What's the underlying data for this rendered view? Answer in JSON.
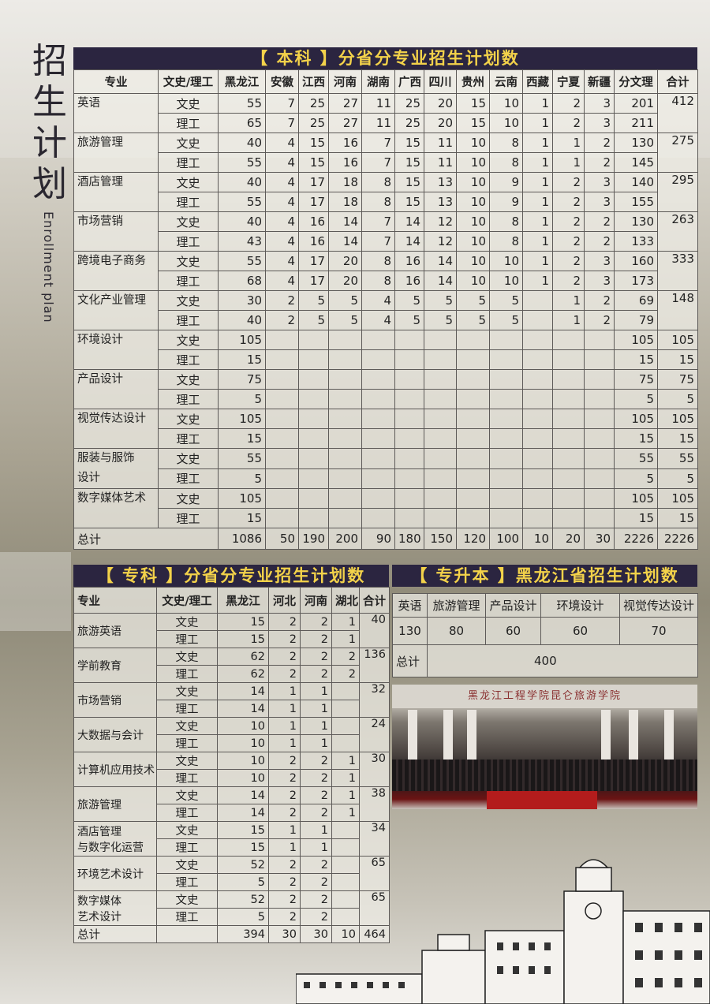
{
  "page": {
    "title_chars": [
      "招",
      "生",
      "计",
      "划"
    ],
    "subtitle": "Enrollment plan"
  },
  "benke": {
    "title": "【 本科 】分省分专业招生计划数",
    "headers": [
      "专业",
      "文史/理工",
      "黑龙江",
      "安徽",
      "江西",
      "河南",
      "湖南",
      "广西",
      "四川",
      "贵州",
      "云南",
      "西藏",
      "宁夏",
      "新疆",
      "分文理",
      "合计"
    ],
    "majors": [
      {
        "name": "英语",
        "total": "412",
        "rows": [
          [
            "文史",
            "55",
            "7",
            "25",
            "27",
            "11",
            "25",
            "20",
            "15",
            "10",
            "1",
            "2",
            "3",
            "201"
          ],
          [
            "理工",
            "65",
            "7",
            "25",
            "27",
            "11",
            "25",
            "20",
            "15",
            "10",
            "1",
            "2",
            "3",
            "211"
          ]
        ]
      },
      {
        "name": "旅游管理",
        "total": "275",
        "rows": [
          [
            "文史",
            "40",
            "4",
            "15",
            "16",
            "7",
            "15",
            "11",
            "10",
            "8",
            "1",
            "1",
            "2",
            "130"
          ],
          [
            "理工",
            "55",
            "4",
            "15",
            "16",
            "7",
            "15",
            "11",
            "10",
            "8",
            "1",
            "1",
            "2",
            "145"
          ]
        ]
      },
      {
        "name": "酒店管理",
        "total": "295",
        "rows": [
          [
            "文史",
            "40",
            "4",
            "17",
            "18",
            "8",
            "15",
            "13",
            "10",
            "9",
            "1",
            "2",
            "3",
            "140"
          ],
          [
            "理工",
            "55",
            "4",
            "17",
            "18",
            "8",
            "15",
            "13",
            "10",
            "9",
            "1",
            "2",
            "3",
            "155"
          ]
        ]
      },
      {
        "name": "市场营销",
        "total": "263",
        "rows": [
          [
            "文史",
            "40",
            "4",
            "16",
            "14",
            "7",
            "14",
            "12",
            "10",
            "8",
            "1",
            "2",
            "2",
            "130"
          ],
          [
            "理工",
            "43",
            "4",
            "16",
            "14",
            "7",
            "14",
            "12",
            "10",
            "8",
            "1",
            "2",
            "2",
            "133"
          ]
        ]
      },
      {
        "name": "跨境电子商务",
        "total": "333",
        "rows": [
          [
            "文史",
            "55",
            "4",
            "17",
            "20",
            "8",
            "16",
            "14",
            "10",
            "10",
            "1",
            "2",
            "3",
            "160"
          ],
          [
            "理工",
            "68",
            "4",
            "17",
            "20",
            "8",
            "16",
            "14",
            "10",
            "10",
            "1",
            "2",
            "3",
            "173"
          ]
        ]
      },
      {
        "name": "文化产业管理",
        "total": "148",
        "rows": [
          [
            "文史",
            "30",
            "2",
            "5",
            "5",
            "4",
            "5",
            "5",
            "5",
            "5",
            "",
            "1",
            "2",
            "69"
          ],
          [
            "理工",
            "40",
            "2",
            "5",
            "5",
            "4",
            "5",
            "5",
            "5",
            "5",
            "",
            "1",
            "2",
            "79"
          ]
        ]
      },
      {
        "name": "环境设计",
        "totals": [
          "105",
          "15"
        ],
        "rows": [
          [
            "文史",
            "105",
            "",
            "",
            "",
            "",
            "",
            "",
            "",
            "",
            "",
            "",
            "",
            "105"
          ],
          [
            "理工",
            "15",
            "",
            "",
            "",
            "",
            "",
            "",
            "",
            "",
            "",
            "",
            "",
            "15"
          ]
        ]
      },
      {
        "name": "产品设计",
        "totals": [
          "75",
          "5"
        ],
        "rows": [
          [
            "文史",
            "75",
            "",
            "",
            "",
            "",
            "",
            "",
            "",
            "",
            "",
            "",
            "",
            "75"
          ],
          [
            "理工",
            "5",
            "",
            "",
            "",
            "",
            "",
            "",
            "",
            "",
            "",
            "",
            "",
            "5"
          ]
        ]
      },
      {
        "name": "视觉传达设计",
        "totals": [
          "105",
          "15"
        ],
        "rows": [
          [
            "文史",
            "105",
            "",
            "",
            "",
            "",
            "",
            "",
            "",
            "",
            "",
            "",
            "",
            "105"
          ],
          [
            "理工",
            "15",
            "",
            "",
            "",
            "",
            "",
            "",
            "",
            "",
            "",
            "",
            "",
            "15"
          ]
        ]
      },
      {
        "name": "服装与服饰设计",
        "name_lines": [
          "服装与服饰",
          "设计"
        ],
        "totals": [
          "55",
          "5"
        ],
        "rows": [
          [
            "文史",
            "55",
            "",
            "",
            "",
            "",
            "",
            "",
            "",
            "",
            "",
            "",
            "",
            "55"
          ],
          [
            "理工",
            "5",
            "",
            "",
            "",
            "",
            "",
            "",
            "",
            "",
            "",
            "",
            "",
            "5"
          ]
        ]
      },
      {
        "name": "数字媒体艺术",
        "totals": [
          "105",
          "15"
        ],
        "rows": [
          [
            "文史",
            "105",
            "",
            "",
            "",
            "",
            "",
            "",
            "",
            "",
            "",
            "",
            "",
            "105"
          ],
          [
            "理工",
            "15",
            "",
            "",
            "",
            "",
            "",
            "",
            "",
            "",
            "",
            "",
            "",
            "15"
          ]
        ]
      }
    ],
    "total_row": [
      "总计",
      "1086",
      "50",
      "190",
      "200",
      "90",
      "180",
      "150",
      "120",
      "100",
      "10",
      "20",
      "30",
      "2226",
      "2226"
    ]
  },
  "zhuanke": {
    "title": "【 专科 】分省分专业招生计划数",
    "headers": [
      "专业",
      "文史/理工",
      "黑龙江",
      "河北",
      "河南",
      "湖北",
      "合计"
    ],
    "majors": [
      {
        "name": "旅游英语",
        "total": "40",
        "rows": [
          [
            "文史",
            "15",
            "2",
            "2",
            "1"
          ],
          [
            "理工",
            "15",
            "2",
            "2",
            "1"
          ]
        ]
      },
      {
        "name": "学前教育",
        "total": "136",
        "rows": [
          [
            "文史",
            "62",
            "2",
            "2",
            "2"
          ],
          [
            "理工",
            "62",
            "2",
            "2",
            "2"
          ]
        ]
      },
      {
        "name": "市场营销",
        "total": "32",
        "rows": [
          [
            "文史",
            "14",
            "1",
            "1",
            ""
          ],
          [
            "理工",
            "14",
            "1",
            "1",
            ""
          ]
        ]
      },
      {
        "name": "大数据与会计",
        "total": "24",
        "rows": [
          [
            "文史",
            "10",
            "1",
            "1",
            ""
          ],
          [
            "理工",
            "10",
            "1",
            "1",
            ""
          ]
        ]
      },
      {
        "name": "计算机应用技术",
        "total": "30",
        "rows": [
          [
            "文史",
            "10",
            "2",
            "2",
            "1"
          ],
          [
            "理工",
            "10",
            "2",
            "2",
            "1"
          ]
        ]
      },
      {
        "name": "旅游管理",
        "total": "38",
        "rows": [
          [
            "文史",
            "14",
            "2",
            "2",
            "1"
          ],
          [
            "理工",
            "14",
            "2",
            "2",
            "1"
          ]
        ]
      },
      {
        "name": "酒店管理与数字化运营",
        "name_lines": [
          "酒店管理",
          "与数字化运营"
        ],
        "total": "34",
        "rows": [
          [
            "文史",
            "15",
            "1",
            "1",
            ""
          ],
          [
            "理工",
            "15",
            "1",
            "1",
            ""
          ]
        ]
      },
      {
        "name": "环境艺术设计",
        "total": "65",
        "rows": [
          [
            "文史",
            "52",
            "2",
            "2",
            ""
          ],
          [
            "理工",
            "5",
            "2",
            "2",
            ""
          ]
        ]
      },
      {
        "name": "数字媒体艺术设计",
        "name_lines": [
          "数字媒体",
          "艺术设计"
        ],
        "total": "65",
        "rows": [
          [
            "文史",
            "52",
            "2",
            "2",
            ""
          ],
          [
            "理工",
            "5",
            "2",
            "2",
            ""
          ]
        ]
      }
    ],
    "total_row": [
      "总计",
      "",
      "394",
      "30",
      "30",
      "10",
      "464"
    ]
  },
  "zhuanshengben": {
    "title": "【 专升本 】黑龙江省招生计划数",
    "headers": [
      "英语",
      "旅游管理",
      "产品设计",
      "环境设计",
      "视觉传达设计"
    ],
    "values": [
      "130",
      "80",
      "60",
      "60",
      "70"
    ],
    "total_label": "总计",
    "total_value": "400"
  },
  "photo": {
    "sign_text": "黑龙江工程学院昆仑旅游学院"
  }
}
